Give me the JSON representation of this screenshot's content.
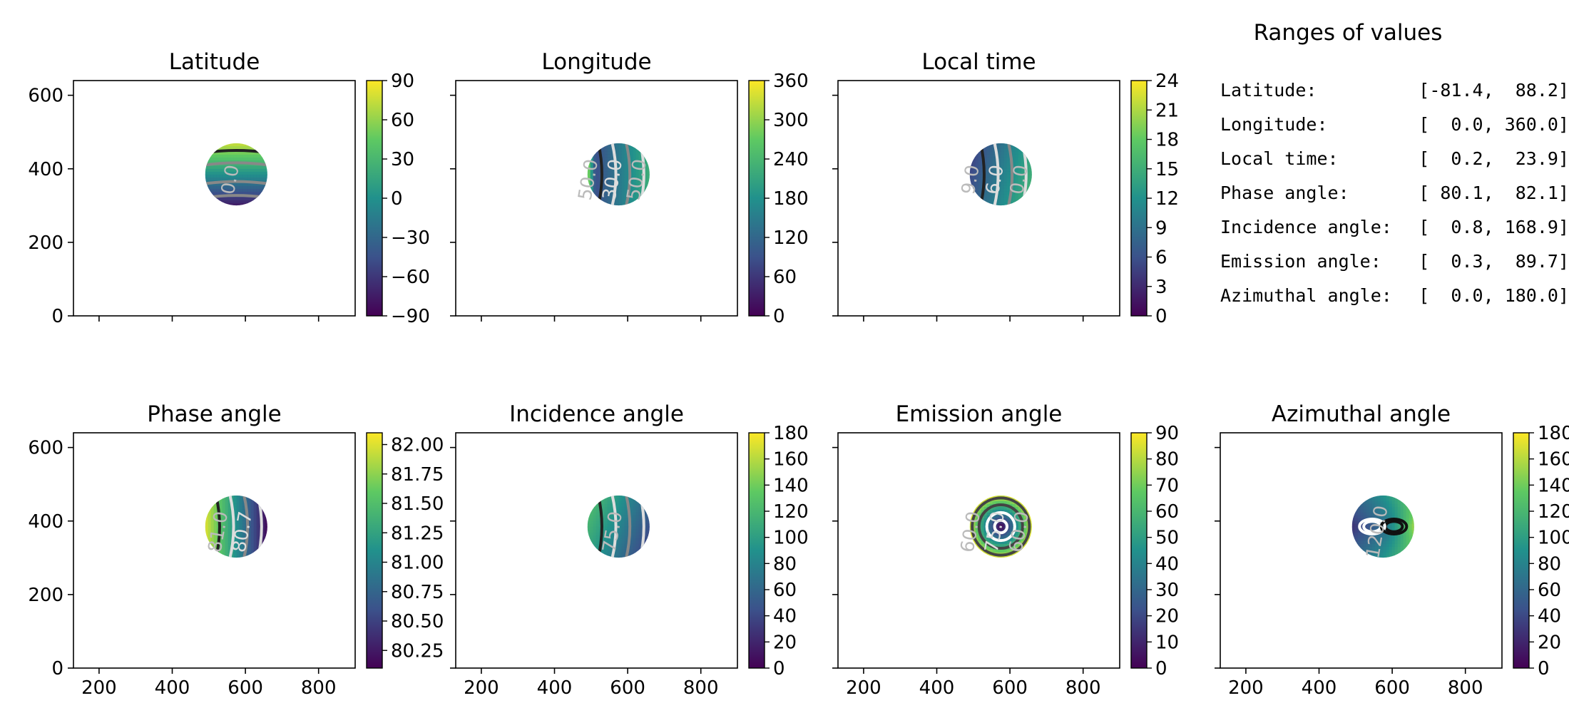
{
  "colormap": [
    "#440154",
    "#3b528b",
    "#21918c",
    "#5ec962",
    "#fde725"
  ],
  "shared_x_ticks": [
    "200",
    "400",
    "600",
    "800"
  ],
  "shared_y_ticks": [
    "0",
    "200",
    "400",
    "600"
  ],
  "ranges_panel": {
    "title": "Ranges of values",
    "rows": [
      {
        "label": "Latitude:",
        "value": "[-81.4,  88.2]"
      },
      {
        "label": "Longitude:",
        "value": "[  0.0, 360.0]"
      },
      {
        "label": "Local time:",
        "value": "[  0.2,  23.9]"
      },
      {
        "label": "Phase angle:",
        "value": "[ 80.1,  82.1]"
      },
      {
        "label": "Incidence angle:",
        "value": "[  0.8, 168.9]"
      },
      {
        "label": "Emission angle:",
        "value": "[  0.3,  89.7]"
      },
      {
        "label": "Azimuthal angle:",
        "value": "[  0.0, 180.0]"
      }
    ]
  },
  "chart_data": [
    {
      "type": "heatmap",
      "title": "Latitude",
      "xlim": [
        130,
        900
      ],
      "ylim": [
        0,
        640
      ],
      "disk_center": [
        575,
        385
      ],
      "disk_radius": 85,
      "colorbar": {
        "range": [
          -90,
          90
        ],
        "ticks": [
          "90",
          "60",
          "30",
          "0",
          "−30",
          "−60",
          "−90"
        ]
      },
      "contour_labels": [
        "0.0"
      ],
      "field": "lat"
    },
    {
      "type": "heatmap",
      "title": "Longitude",
      "xlim": [
        130,
        900
      ],
      "ylim": [
        0,
        640
      ],
      "disk_center": [
        575,
        385
      ],
      "disk_radius": 85,
      "colorbar": {
        "range": [
          0,
          360
        ],
        "ticks": [
          "360",
          "300",
          "240",
          "180",
          "120",
          "60",
          "0"
        ]
      },
      "contour_labels": [
        "50.0",
        "30.0",
        "50.0"
      ],
      "field": "lon"
    },
    {
      "type": "heatmap",
      "title": "Local time",
      "xlim": [
        130,
        900
      ],
      "ylim": [
        0,
        640
      ],
      "disk_center": [
        575,
        385
      ],
      "disk_radius": 85,
      "colorbar": {
        "range": [
          0,
          24
        ],
        "ticks": [
          "24",
          "21",
          "18",
          "15",
          "12",
          "9",
          "6",
          "3",
          "0"
        ]
      },
      "contour_labels": [
        "9.0",
        "6.0",
        "0.0"
      ],
      "field": "lt"
    },
    {
      "type": "heatmap",
      "title": "Phase angle",
      "xlim": [
        130,
        900
      ],
      "ylim": [
        0,
        640
      ],
      "disk_center": [
        575,
        385
      ],
      "disk_radius": 85,
      "colorbar": {
        "range": [
          80.1,
          82.1
        ],
        "ticks": [
          "82.00",
          "81.75",
          "81.50",
          "81.25",
          "81.00",
          "80.75",
          "80.50",
          "80.25"
        ]
      },
      "contour_labels": [
        "81.0",
        "80.7"
      ],
      "field": "phase"
    },
    {
      "type": "heatmap",
      "title": "Incidence angle",
      "xlim": [
        130,
        900
      ],
      "ylim": [
        0,
        640
      ],
      "disk_center": [
        575,
        385
      ],
      "disk_radius": 85,
      "colorbar": {
        "range": [
          0,
          180
        ],
        "ticks": [
          "180",
          "160",
          "140",
          "120",
          "100",
          "80",
          "60",
          "40",
          "20",
          "0"
        ]
      },
      "contour_labels": [
        "75.0"
      ],
      "field": "inc"
    },
    {
      "type": "heatmap",
      "title": "Emission angle",
      "xlim": [
        130,
        900
      ],
      "ylim": [
        0,
        640
      ],
      "disk_center": [
        575,
        385
      ],
      "disk_radius": 85,
      "colorbar": {
        "range": [
          0,
          90
        ],
        "ticks": [
          "90",
          "80",
          "70",
          "60",
          "50",
          "40",
          "30",
          "20",
          "10",
          "0"
        ]
      },
      "contour_labels": [
        "60.0",
        "75.0",
        "60.0"
      ],
      "field": "emi"
    },
    {
      "type": "heatmap",
      "title": "Azimuthal angle",
      "xlim": [
        130,
        900
      ],
      "ylim": [
        0,
        640
      ],
      "disk_center": [
        575,
        385
      ],
      "disk_radius": 85,
      "colorbar": {
        "range": [
          0,
          180
        ],
        "ticks": [
          "180",
          "160",
          "140",
          "120",
          "100",
          "80",
          "60",
          "40",
          "20",
          "0"
        ]
      },
      "contour_labels": [
        "120.0"
      ],
      "field": "azi"
    }
  ]
}
